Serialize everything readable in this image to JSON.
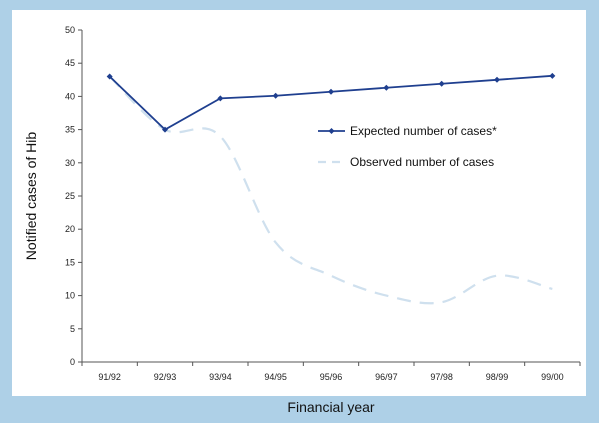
{
  "chart_data": {
    "type": "line",
    "xlabel": "Financial year",
    "ylabel": "Notified cases of Hib",
    "ylim": [
      0,
      50
    ],
    "yticks": [
      0,
      5,
      10,
      15,
      20,
      25,
      30,
      35,
      40,
      45,
      50
    ],
    "categories": [
      "91/92",
      "92/93",
      "93/94",
      "94/95",
      "95/96",
      "96/97",
      "97/98",
      "98/99",
      "99/00"
    ],
    "grid": false,
    "legend_position": "right",
    "series": [
      {
        "name": "Expected number of cases*",
        "values": [
          43,
          35,
          39.7,
          40.1,
          40.7,
          41.3,
          41.9,
          42.5,
          43.1
        ],
        "color": "#1f3f8f",
        "style": "solid",
        "marker": "diamond"
      },
      {
        "name": "Observed number of cases",
        "values": [
          43,
          35,
          34,
          18,
          13,
          10,
          9,
          13,
          11
        ],
        "color": "#cfe0ee",
        "style": "dashed",
        "marker": "none"
      }
    ]
  }
}
